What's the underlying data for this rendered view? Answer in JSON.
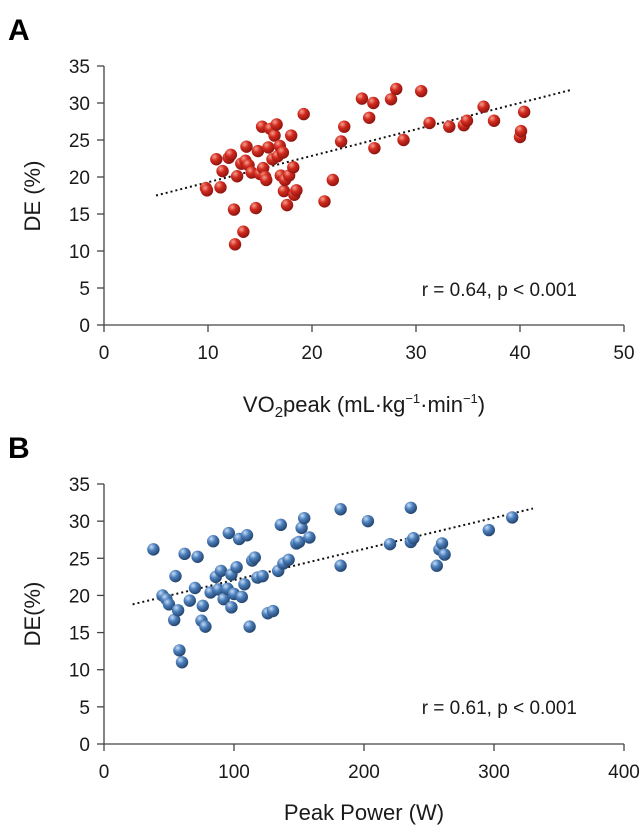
{
  "chart_data": [
    {
      "type": "scatter",
      "panel_label": "A",
      "xlabel_main": "VO",
      "xlabel_sub": "2",
      "xlabel_rest": "peak (mL·kg",
      "xlabel_sup1": "−1",
      "xlabel_mid": "·min",
      "xlabel_sup2": "−1",
      "xlabel_end": ")",
      "ylabel": "DE (%)",
      "annotation": "r = 0.64, p < 0.001",
      "xlim": [
        0,
        50
      ],
      "ylim": [
        0,
        35
      ],
      "xticks": [
        0,
        10,
        20,
        30,
        40,
        50
      ],
      "yticks": [
        0,
        5,
        10,
        15,
        20,
        25,
        30,
        35
      ],
      "marker_color": "#c8241b",
      "marker_highlight": "#f08070",
      "trendline": {
        "x": [
          5,
          45
        ],
        "y": [
          17.5,
          31.8
        ]
      },
      "points": [
        [
          9.8,
          18.5
        ],
        [
          9.9,
          18.2
        ],
        [
          10.8,
          22.4
        ],
        [
          11.2,
          18.6
        ],
        [
          11.4,
          20.8
        ],
        [
          12.0,
          22.6
        ],
        [
          12.2,
          23.0
        ],
        [
          12.5,
          15.6
        ],
        [
          12.6,
          10.9
        ],
        [
          12.8,
          20.1
        ],
        [
          13.2,
          21.8
        ],
        [
          13.4,
          12.6
        ],
        [
          13.6,
          22.2
        ],
        [
          13.7,
          24.1
        ],
        [
          13.9,
          21.6
        ],
        [
          14.2,
          20.6
        ],
        [
          14.6,
          15.8
        ],
        [
          14.8,
          23.5
        ],
        [
          15.0,
          20.4
        ],
        [
          15.2,
          26.8
        ],
        [
          15.3,
          21.2
        ],
        [
          15.5,
          20.0
        ],
        [
          15.6,
          19.6
        ],
        [
          15.8,
          24.0
        ],
        [
          16.0,
          26.5
        ],
        [
          16.2,
          22.4
        ],
        [
          16.4,
          25.6
        ],
        [
          16.6,
          27.1
        ],
        [
          16.7,
          22.8
        ],
        [
          16.9,
          24.2
        ],
        [
          17.0,
          20.2
        ],
        [
          17.2,
          23.3
        ],
        [
          17.3,
          18.1
        ],
        [
          17.4,
          19.6
        ],
        [
          17.6,
          16.2
        ],
        [
          17.8,
          20.2
        ],
        [
          18.0,
          25.6
        ],
        [
          18.2,
          21.3
        ],
        [
          18.3,
          17.6
        ],
        [
          18.5,
          18.2
        ],
        [
          19.2,
          28.5
        ],
        [
          21.2,
          16.7
        ],
        [
          22.0,
          19.6
        ],
        [
          22.8,
          24.8
        ],
        [
          23.1,
          26.8
        ],
        [
          24.8,
          30.6
        ],
        [
          25.5,
          28.0
        ],
        [
          25.9,
          30.0
        ],
        [
          26.0,
          23.9
        ],
        [
          27.6,
          30.5
        ],
        [
          28.1,
          31.9
        ],
        [
          28.8,
          25.0
        ],
        [
          30.5,
          31.6
        ],
        [
          31.3,
          27.3
        ],
        [
          33.2,
          26.8
        ],
        [
          34.6,
          27.0
        ],
        [
          34.9,
          27.6
        ],
        [
          36.5,
          29.5
        ],
        [
          37.5,
          27.6
        ],
        [
          40.0,
          25.4
        ],
        [
          40.1,
          26.2
        ],
        [
          40.4,
          28.8
        ]
      ]
    },
    {
      "type": "scatter",
      "panel_label": "B",
      "xlabel": "Peak Power (W)",
      "ylabel": "DE(%)",
      "annotation": "r = 0.61, p < 0.001",
      "xlim": [
        0,
        400
      ],
      "ylim": [
        0,
        35
      ],
      "xticks": [
        0,
        100,
        200,
        300,
        400
      ],
      "yticks": [
        0,
        5,
        10,
        15,
        20,
        25,
        30,
        35
      ],
      "marker_color": "#3d6fa8",
      "marker_highlight": "#a9c6ea",
      "trendline": {
        "x": [
          22,
          330
        ],
        "y": [
          18.8,
          31.7
        ]
      },
      "points": [
        [
          38,
          26.2
        ],
        [
          45,
          20.0
        ],
        [
          48,
          19.5
        ],
        [
          50,
          18.8
        ],
        [
          54,
          16.7
        ],
        [
          55,
          22.6
        ],
        [
          57,
          18.0
        ],
        [
          58,
          12.6
        ],
        [
          60,
          11.0
        ],
        [
          62,
          25.6
        ],
        [
          66,
          19.3
        ],
        [
          70,
          21.0
        ],
        [
          72,
          25.2
        ],
        [
          75,
          16.6
        ],
        [
          76,
          18.6
        ],
        [
          78,
          15.8
        ],
        [
          82,
          20.4
        ],
        [
          84,
          27.3
        ],
        [
          86,
          22.5
        ],
        [
          88,
          20.8
        ],
        [
          90,
          23.3
        ],
        [
          92,
          19.5
        ],
        [
          95,
          20.9
        ],
        [
          96,
          28.4
        ],
        [
          98,
          18.4
        ],
        [
          98,
          22.8
        ],
        [
          100,
          20.2
        ],
        [
          102,
          23.8
        ],
        [
          104,
          27.6
        ],
        [
          106,
          19.8
        ],
        [
          108,
          21.5
        ],
        [
          110,
          28.1
        ],
        [
          112,
          15.8
        ],
        [
          114,
          24.7
        ],
        [
          116,
          25.1
        ],
        [
          118,
          22.4
        ],
        [
          122,
          22.6
        ],
        [
          126,
          17.6
        ],
        [
          130,
          17.9
        ],
        [
          134,
          23.3
        ],
        [
          136,
          29.5
        ],
        [
          138,
          24.3
        ],
        [
          142,
          24.8
        ],
        [
          148,
          27.0
        ],
        [
          150,
          27.2
        ],
        [
          152,
          29.1
        ],
        [
          154,
          30.4
        ],
        [
          158,
          27.8
        ],
        [
          182,
          31.6
        ],
        [
          182,
          24.0
        ],
        [
          203,
          30.0
        ],
        [
          220,
          26.9
        ],
        [
          236,
          31.8
        ],
        [
          236,
          27.2
        ],
        [
          238,
          27.7
        ],
        [
          256,
          24.0
        ],
        [
          258,
          26.2
        ],
        [
          260,
          27.0
        ],
        [
          262,
          25.5
        ],
        [
          296,
          28.8
        ],
        [
          314,
          30.5
        ]
      ]
    }
  ]
}
